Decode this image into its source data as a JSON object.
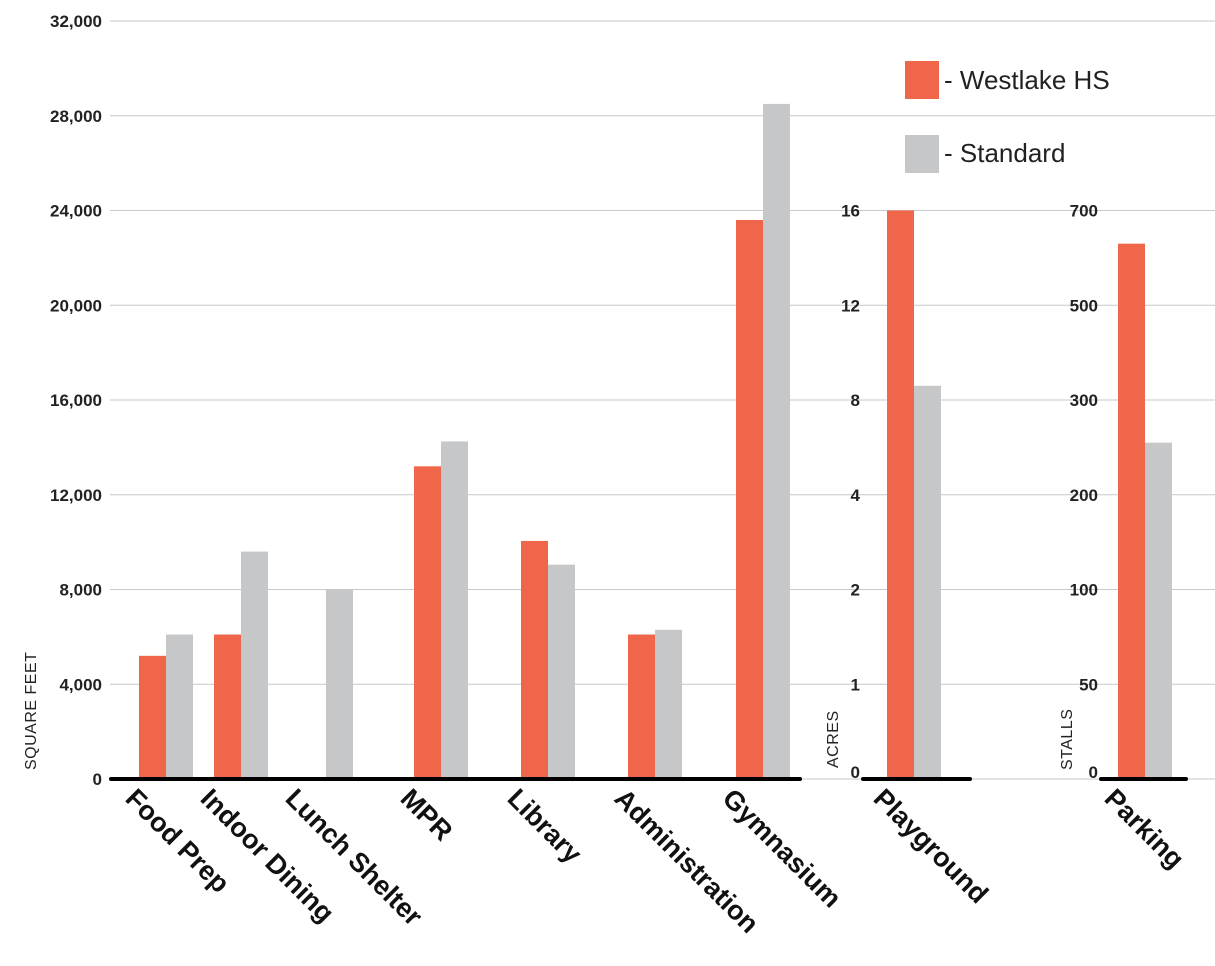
{
  "colors": {
    "westlake": "#ef664a",
    "standard": "#c6c7c9",
    "grid": "#c8c8c8",
    "axis": "#000000"
  },
  "legend": [
    {
      "name": "- Westlake HS",
      "color": "#ef664a"
    },
    {
      "name": "- Standard",
      "color": "#c6c7c9"
    }
  ],
  "chart_data": [
    {
      "type": "bar",
      "ylabel": "SQUARE FEET",
      "ylim": [
        0,
        32000
      ],
      "yticks": [
        "0",
        "4,000",
        "8,000",
        "12,000",
        "16,000",
        "20,000",
        "24,000",
        "28,000",
        "32,000"
      ],
      "categories": [
        "Food Prep",
        "Indoor Dining",
        "Lunch Shelter",
        "MPR",
        "Library",
        "Administration",
        "Gymnasium"
      ],
      "series": [
        {
          "name": "Westlake HS",
          "values": [
            5200,
            6100,
            0,
            13200,
            10050,
            6100,
            23600
          ]
        },
        {
          "name": "Standard",
          "values": [
            6100,
            9600,
            8000,
            14250,
            9050,
            6300,
            28500
          ]
        }
      ],
      "grid": true,
      "legend_position": "top-right"
    },
    {
      "type": "bar",
      "ylabel": "ACRES",
      "yticks": [
        "0",
        "1",
        "2",
        "4",
        "8",
        "12",
        "16"
      ],
      "categories": [
        "Playground"
      ],
      "series": [
        {
          "name": "Westlake HS",
          "values": [
            16.3
          ]
        },
        {
          "name": "Standard",
          "values": [
            8.6
          ]
        }
      ],
      "grid": true
    },
    {
      "type": "bar",
      "ylabel": "STALLS",
      "yticks": [
        "0",
        "50",
        "100",
        "200",
        "300",
        "500",
        "700"
      ],
      "categories": [
        "Parking"
      ],
      "series": [
        {
          "name": "Westlake HS",
          "values": [
            630
          ]
        },
        {
          "name": "Standard",
          "values": [
            255
          ]
        }
      ],
      "grid": true
    }
  ]
}
